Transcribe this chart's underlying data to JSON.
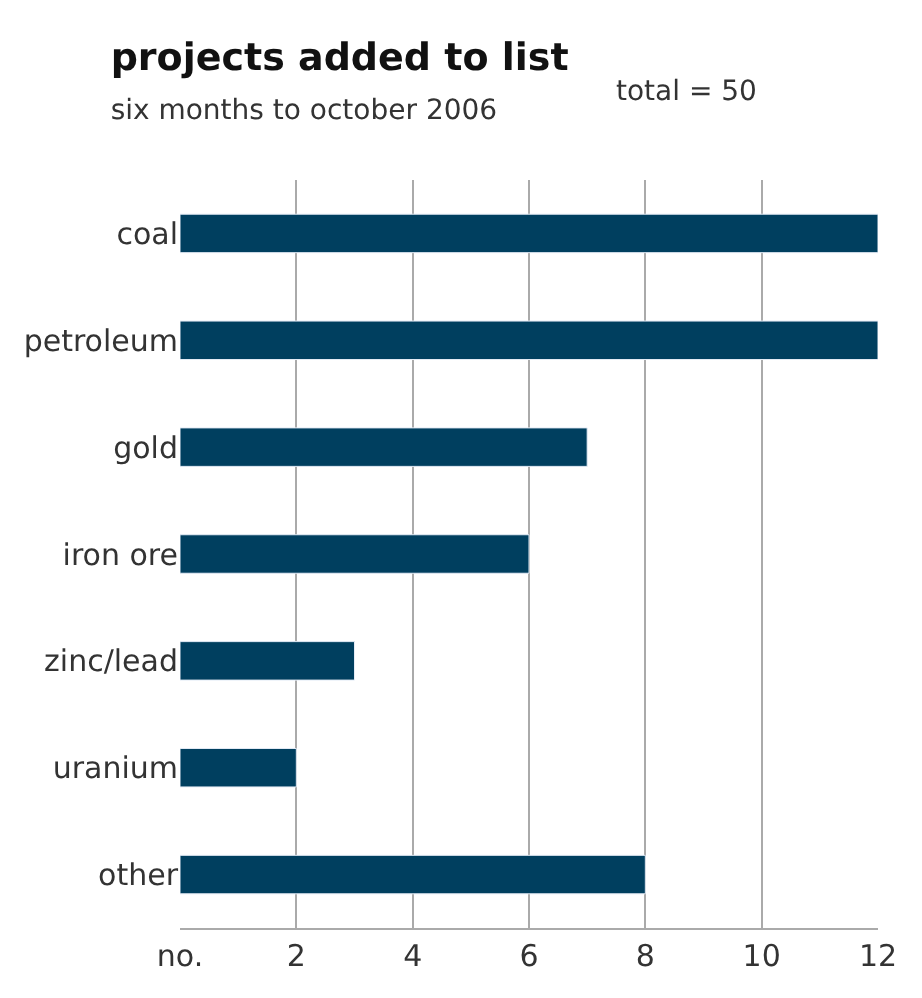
{
  "chart_data": {
    "type": "bar",
    "orientation": "horizontal",
    "title": "projects added to list",
    "subtitle": "six months to october 2006",
    "annotations": [
      "total = 50"
    ],
    "categories": [
      "coal",
      "petroleum",
      "gold",
      "iron ore",
      "zinc/lead",
      "uranium",
      "other"
    ],
    "values": [
      12,
      12,
      7,
      6,
      3,
      2,
      8
    ],
    "color": "#003f5f",
    "xlim": [
      0,
      12
    ],
    "xticks": [
      {
        "value": 0,
        "label": "no."
      },
      2,
      4,
      6,
      8,
      10,
      12
    ],
    "grid": "x",
    "legend": false
  }
}
